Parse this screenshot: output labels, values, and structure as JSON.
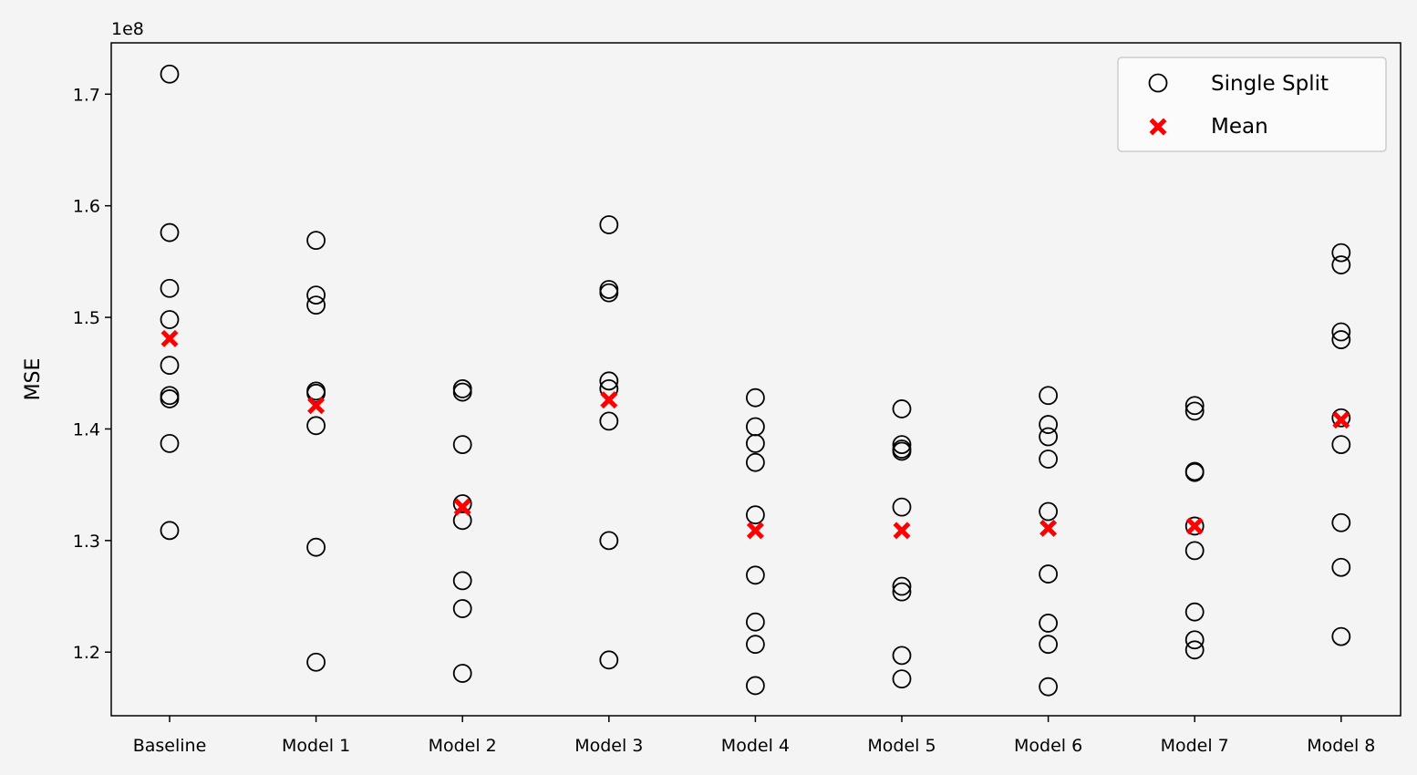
{
  "chart_data": {
    "type": "scatter",
    "title": "",
    "xlabel": "",
    "ylabel": "MSE",
    "y_scale_note": "1e8",
    "ylim": [
      1.143,
      1.746
    ],
    "grid": false,
    "legend_position": "top-right",
    "categories": [
      "Baseline",
      "Model 1",
      "Model 2",
      "Model 3",
      "Model 4",
      "Model 5",
      "Model 6",
      "Model 7",
      "Model 8"
    ],
    "yticks": [
      "1.2",
      "1.3",
      "1.4",
      "1.5",
      "1.6",
      "1.7"
    ],
    "series": [
      {
        "name": "Single Split",
        "marker": "open-circle",
        "color": "#000000",
        "values": [
          [
            1.718,
            1.576,
            1.526,
            1.498,
            1.457,
            1.43,
            1.427,
            1.387,
            1.309
          ],
          [
            1.569,
            1.52,
            1.511,
            1.434,
            1.432,
            1.403,
            1.294,
            1.191
          ],
          [
            1.436,
            1.433,
            1.386,
            1.333,
            1.318,
            1.264,
            1.239,
            1.181
          ],
          [
            1.583,
            1.525,
            1.522,
            1.443,
            1.436,
            1.407,
            1.3,
            1.193
          ],
          [
            1.428,
            1.402,
            1.387,
            1.37,
            1.323,
            1.269,
            1.227,
            1.207,
            1.17
          ],
          [
            1.418,
            1.386,
            1.382,
            1.38,
            1.33,
            1.259,
            1.254,
            1.197,
            1.176
          ],
          [
            1.43,
            1.404,
            1.393,
            1.373,
            1.326,
            1.27,
            1.226,
            1.207,
            1.169
          ],
          [
            1.421,
            1.416,
            1.362,
            1.361,
            1.313,
            1.291,
            1.236,
            1.211,
            1.202
          ],
          [
            1.558,
            1.547,
            1.487,
            1.48,
            1.41,
            1.386,
            1.316,
            1.276,
            1.214
          ]
        ]
      },
      {
        "name": "Mean",
        "marker": "filled-x",
        "color": "#ff0000",
        "values": [
          1.481,
          1.421,
          1.33,
          1.426,
          1.309,
          1.309,
          1.311,
          1.313,
          1.408
        ]
      }
    ]
  }
}
